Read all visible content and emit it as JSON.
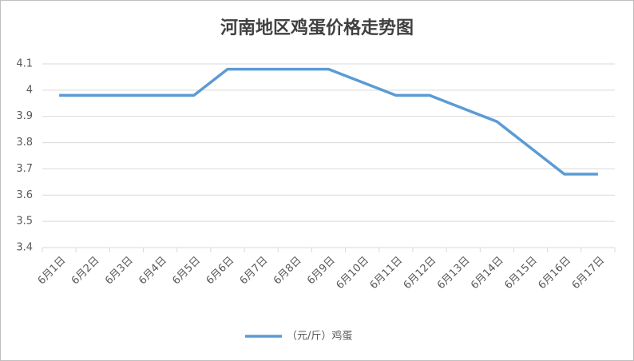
{
  "chart_data": {
    "type": "line",
    "title": "河南地区鸡蛋价格走势图",
    "categories": [
      "6月1日",
      "6月2日",
      "6月3日",
      "6月4日",
      "6月5日",
      "6月6日",
      "6月7日",
      "6月8日",
      "6月9日",
      "6月10日",
      "6月11日",
      "6月12日",
      "6月13日",
      "6月14日",
      "6月15日",
      "6月16日",
      "6月17日"
    ],
    "series": [
      {
        "name": "（元/斤）鸡蛋",
        "color": "#5b9bd5",
        "values": [
          3.98,
          3.98,
          3.98,
          3.98,
          3.98,
          4.08,
          4.08,
          4.08,
          4.08,
          4.03,
          3.98,
          3.98,
          3.93,
          3.88,
          3.78,
          3.68,
          3.68
        ]
      }
    ],
    "ylim": [
      3.4,
      4.1
    ],
    "yticks": [
      3.4,
      3.5,
      3.6,
      3.7,
      3.8,
      3.9,
      4,
      4.1
    ],
    "grid": true,
    "legend": "bottom"
  }
}
